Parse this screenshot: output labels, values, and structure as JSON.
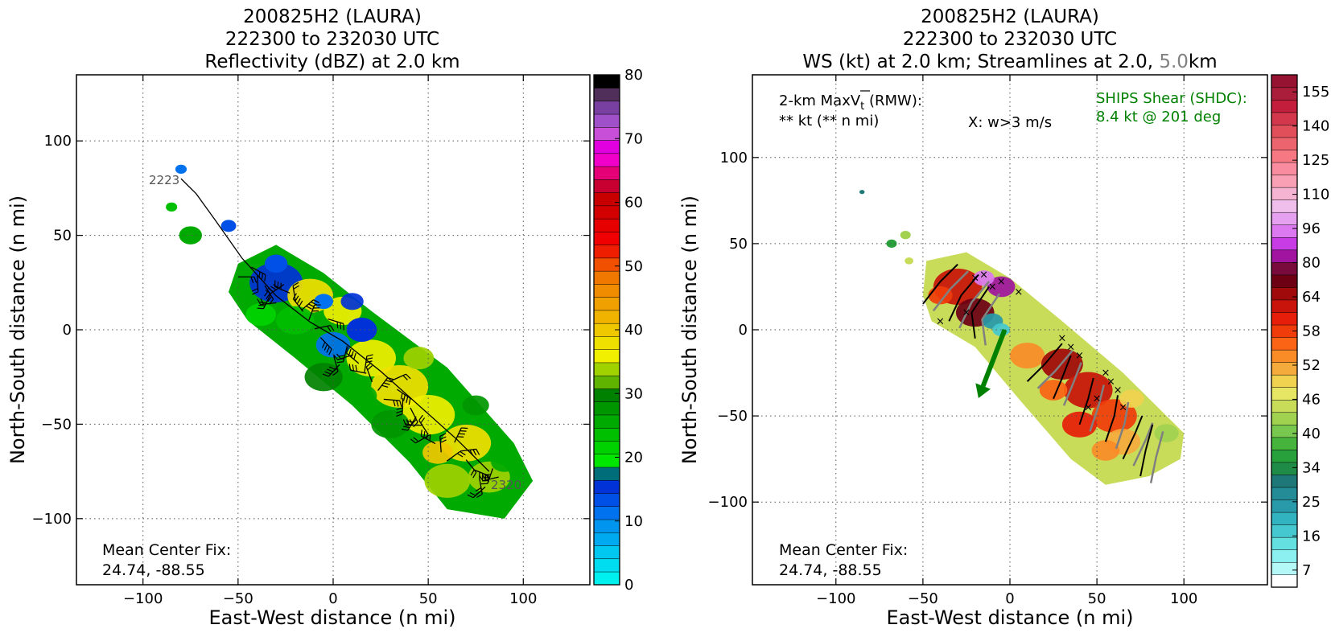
{
  "chart_data": [
    {
      "type": "heatmap",
      "title_lines": [
        "200825H2 (LAURA)",
        "222300 to 232030 UTC",
        "Reflectivity (dBZ) at 2.0 km"
      ],
      "xlabel": "East-West distance (n mi)",
      "ylabel": "North-South distance (n mi)",
      "xlim": [
        -135,
        135
      ],
      "ylim": [
        -135,
        135
      ],
      "xticks": [
        -100,
        -50,
        0,
        50,
        100
      ],
      "yticks": [
        -100,
        -50,
        0,
        50,
        100
      ],
      "grid": true,
      "annotation_lines": [
        "Mean Center Fix:",
        "24.74, -88.55"
      ],
      "track_labels": [
        {
          "text": "2223",
          "x": -97,
          "y": 78
        },
        {
          "text": "2320",
          "x": 82,
          "y": -81
        }
      ],
      "track": [
        [
          -80,
          80
        ],
        [
          -72,
          72
        ],
        [
          -62,
          58
        ],
        [
          -48,
          38
        ],
        [
          -30,
          18
        ],
        [
          -12,
          4
        ],
        [
          5,
          -6
        ],
        [
          25,
          -22
        ],
        [
          45,
          -40
        ],
        [
          65,
          -58
        ],
        [
          82,
          -75
        ]
      ],
      "colorbar": {
        "label_ticks": [
          0,
          10,
          20,
          30,
          40,
          50,
          60,
          70,
          80
        ],
        "colors": [
          "#00f0f0",
          "#00dcf0",
          "#00c8f0",
          "#00aaf0",
          "#0096f0",
          "#0072f0",
          "#0050e8",
          "#0032d8",
          "#006e7a",
          "#00e600",
          "#00d200",
          "#00be00",
          "#00aa00",
          "#009600",
          "#008200",
          "#60b400",
          "#a0d200",
          "#f0f000",
          "#f0e000",
          "#f0c800",
          "#f0b400",
          "#f0a000",
          "#f08c00",
          "#f07800",
          "#f05000",
          "#f01e00",
          "#f00000",
          "#e60000",
          "#d20000",
          "#c80000",
          "#c80032",
          "#e60078",
          "#f000c8",
          "#e000e0",
          "#c850d8",
          "#a050c8",
          "#7840a0",
          "#50305a",
          "#000000"
        ]
      }
    },
    {
      "type": "heatmap",
      "title_lines": [
        "200825H2 (LAURA)",
        "222300 to 232030 UTC"
      ],
      "title_line3": {
        "prefix": "WS (kt) at 2.0 km; Streamlines at 2.0, ",
        "gray": "5.0",
        "suffix": "km"
      },
      "xlabel": "East-West distance (n mi)",
      "ylabel": "North-South distance (n mi)",
      "xlim": [
        -148,
        148
      ],
      "ylim": [
        -148,
        148
      ],
      "xticks": [
        -100,
        -50,
        0,
        50,
        100
      ],
      "yticks": [
        -100,
        -50,
        0,
        50,
        100
      ],
      "grid": true,
      "maxvt_line1": "2-km MaxV",
      "maxvt_sub": "t",
      "maxvt_suffix": " (RMW):",
      "maxvt_line2": "** kt (** n mi)",
      "w_label": "X: w>3 m/s",
      "ships_lines": [
        "SHIPS Shear (SHDC):",
        "8.4 kt @ 201 deg"
      ],
      "annotation_lines": [
        "Mean Center Fix:",
        "24.74, -88.55"
      ],
      "shear": {
        "kt": 8.4,
        "deg": 201
      },
      "colorbar": {
        "label_ticks": [
          7,
          16,
          25,
          34,
          40,
          46,
          52,
          58,
          64,
          80,
          96,
          110,
          125,
          140,
          155
        ],
        "colors": [
          "#ffffff",
          "#b4f8f8",
          "#8cf0f0",
          "#64e0e0",
          "#46c8d0",
          "#32b4c0",
          "#289aaa",
          "#238c96",
          "#1e7878",
          "#1e8c46",
          "#28a03c",
          "#46b43c",
          "#78c850",
          "#a0d250",
          "#c8dc5a",
          "#e6e664",
          "#f0d250",
          "#f5aa3c",
          "#fa8c28",
          "#fa6414",
          "#f03c0a",
          "#e61e0a",
          "#c8140a",
          "#a00a0a",
          "#6e0014",
          "#780a3c",
          "#a014a0",
          "#c83ce6",
          "#dc78f0",
          "#e6a0f0",
          "#f0beeb",
          "#f5b4d2",
          "#faa0b4",
          "#fa8ca0",
          "#f57882",
          "#eb646e",
          "#e1505a",
          "#d2374b",
          "#c31e3c",
          "#aa1e3c",
          "#961432"
        ]
      }
    }
  ]
}
